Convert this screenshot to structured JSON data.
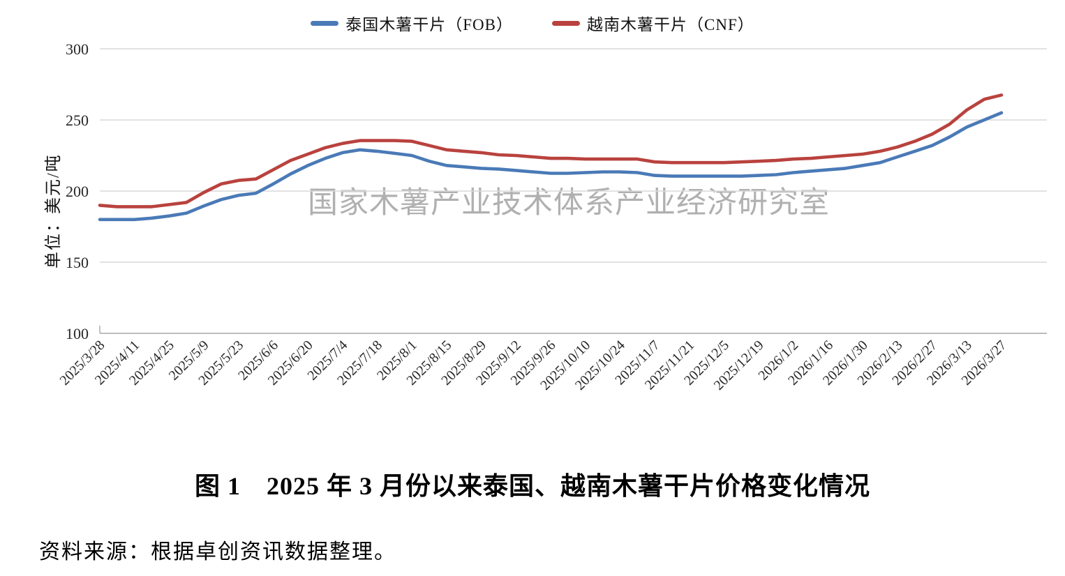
{
  "page": {
    "watermark": "国家木薯产业技术体系产业经济研究室",
    "caption": "图 1　2025 年 3 月份以来泰国、越南木薯干片价格变化情况",
    "source": "资料来源：根据卓创资讯数据整理。"
  },
  "chart_data": {
    "type": "line",
    "title": "",
    "xlabel": "",
    "ylabel": "单位：美元/吨",
    "ylim": [
      100,
      300
    ],
    "yticks": [
      100,
      150,
      200,
      250,
      300
    ],
    "grid": true,
    "legend_position": "top-center",
    "x_tick_labels": [
      "2025/3/28",
      "2025/4/11",
      "2025/4/25",
      "2025/5/9",
      "2025/5/23",
      "2025/6/6",
      "2025/6/20",
      "2025/7/4",
      "2025/7/18",
      "2025/8/1",
      "2025/8/15",
      "2025/8/29",
      "2025/9/12",
      "2025/9/26",
      "2025/10/10",
      "2025/10/24",
      "2025/11/7",
      "2025/11/21",
      "2025/12/5",
      "2025/12/19",
      "2026/1/2",
      "2026/1/16",
      "2026/1/30",
      "2026/2/13",
      "2026/2/27",
      "2026/3/13",
      "2026/3/27"
    ],
    "points_per_labeled_tick": 2,
    "series": [
      {
        "name": "泰国木薯干片（FOB）",
        "color": "#4a7ab7",
        "values": [
          180,
          180,
          180,
          181,
          182.5,
          184.5,
          189.5,
          194,
          197,
          198.5,
          205,
          212,
          218,
          223,
          227,
          229,
          228,
          226.5,
          225,
          221,
          218,
          217,
          216,
          215.5,
          214.5,
          213.5,
          212.5,
          212.5,
          213,
          213.5,
          213.5,
          213,
          211,
          210.5,
          210.5,
          210.5,
          210.5,
          210.5,
          211,
          211.5,
          213,
          214,
          215,
          216,
          218,
          220,
          224,
          228,
          232,
          238,
          245,
          250,
          255
        ]
      },
      {
        "name": "越南木薯干片（CNF）",
        "color": "#b9423e",
        "values": [
          190,
          189,
          189,
          189,
          190.5,
          192,
          199,
          205,
          207.5,
          208.5,
          215,
          221.5,
          226,
          230.5,
          233.5,
          235.5,
          235.5,
          235.5,
          235,
          232,
          229,
          228,
          227,
          225.5,
          225,
          224,
          223,
          223,
          222.5,
          222.5,
          222.5,
          222.5,
          220.5,
          220,
          220,
          220,
          220,
          220.5,
          221,
          221.5,
          222.5,
          223,
          224,
          225,
          226,
          228,
          231,
          235,
          240,
          247,
          257,
          264.5,
          267.5
        ]
      }
    ],
    "axis_color": "#a6a6a6",
    "gridline_color": "#d9d9d9",
    "tick_label_color": "#262626"
  }
}
